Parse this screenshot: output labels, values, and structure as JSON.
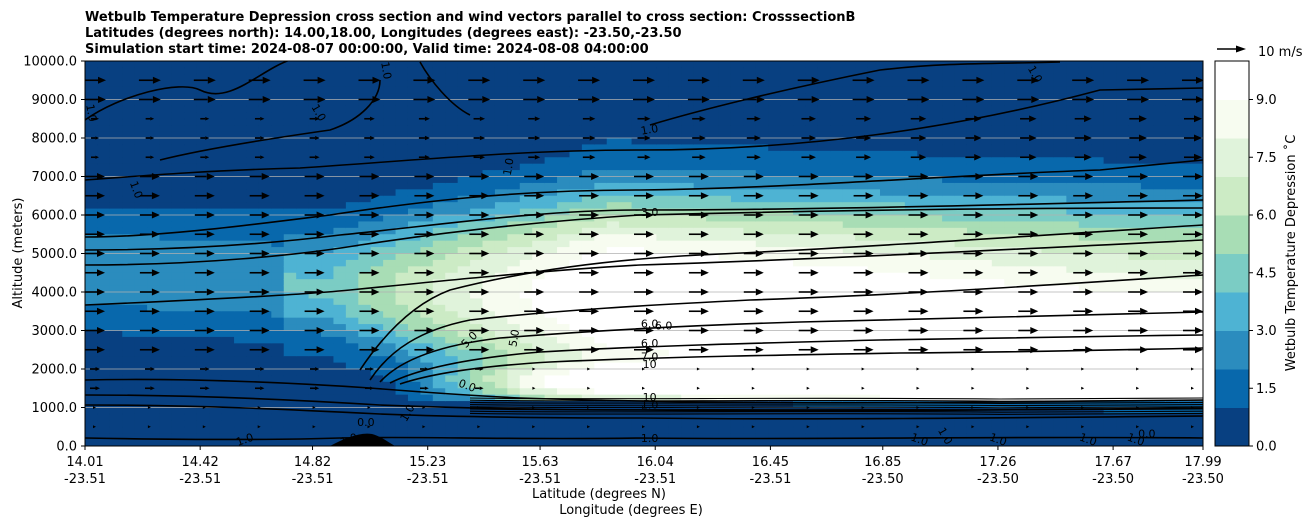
{
  "chart_data": {
    "type": "heatmap",
    "title_lines": [
      "Wetbulb Temperature Depression cross section and wind vectors parallel to cross section: CrosssectionB",
      "Latitudes (degrees north): 14.00,18.00, Longitudes (degrees east): -23.50,-23.50",
      "Simulation start time: 2024-08-07 00:00:00, Valid time: 2024-08-08 04:00:00"
    ],
    "xlabel_lines": [
      "Latitude (degrees N)",
      "Longitude (degrees E)"
    ],
    "ylabel": "Altitude (meters)",
    "x_ticks": [
      {
        "lat": "14.01",
        "lon": "-23.51"
      },
      {
        "lat": "14.42",
        "lon": "-23.51"
      },
      {
        "lat": "14.82",
        "lon": "-23.51"
      },
      {
        "lat": "15.23",
        "lon": "-23.51"
      },
      {
        "lat": "15.63",
        "lon": "-23.51"
      },
      {
        "lat": "16.04",
        "lon": "-23.51"
      },
      {
        "lat": "16.45",
        "lon": "-23.51"
      },
      {
        "lat": "16.85",
        "lon": "-23.50"
      },
      {
        "lat": "17.26",
        "lon": "-23.50"
      },
      {
        "lat": "17.67",
        "lon": "-23.50"
      },
      {
        "lat": "17.99",
        "lon": "-23.50"
      }
    ],
    "xlim": [
      14.01,
      17.99
    ],
    "y_ticks": [
      "0.0",
      "1000.0",
      "2000.0",
      "3000.0",
      "4000.0",
      "5000.0",
      "6000.0",
      "7000.0",
      "8000.0",
      "9000.0",
      "10000.0"
    ],
    "ylim": [
      0,
      10000
    ],
    "grid": "horizontal",
    "colorbar": {
      "label": "Wetbulb Temperature Depression ˚C",
      "ticks": [
        "0.0",
        "1.5",
        "3.0",
        "4.5",
        "6.0",
        "7.5",
        "9.0"
      ],
      "range": [
        0,
        10
      ],
      "colors": [
        "#084081",
        "#0868ac",
        "#2b8cbe",
        "#4eb3d3",
        "#7bccc4",
        "#a8ddb5",
        "#ccebc5",
        "#e0f3db",
        "#f7fcf0",
        "#ffffff"
      ]
    },
    "quiver_key": {
      "label": "10 m/s",
      "speed": 10
    },
    "contour_labels": [
      {
        "text": "1.0",
        "lat": 15.08,
        "alt": 9750,
        "rot": 80
      },
      {
        "text": "1.0",
        "lat": 14.03,
        "alt": 8650,
        "rot": 80
      },
      {
        "text": "1.0",
        "lat": 14.84,
        "alt": 8650,
        "rot": 60
      },
      {
        "text": "1.0",
        "lat": 15.52,
        "alt": 7250,
        "rot": -80
      },
      {
        "text": "1.0",
        "lat": 14.19,
        "alt": 6650,
        "rot": 70
      },
      {
        "text": "1.0",
        "lat": 16.02,
        "alt": 8200,
        "rot": -10
      },
      {
        "text": "1.0",
        "lat": 17.39,
        "alt": 9650,
        "rot": 60
      },
      {
        "text": "3.0",
        "lat": 16.02,
        "alt": 6050,
        "rot": 0
      },
      {
        "text": "6.0",
        "lat": 16.02,
        "alt": 3150,
        "rot": 0
      },
      {
        "text": "6.0",
        "lat": 16.07,
        "alt": 3100,
        "rot": 0
      },
      {
        "text": "5.0",
        "lat": 15.54,
        "alt": 2800,
        "rot": -80
      },
      {
        "text": "5.0",
        "lat": 15.38,
        "alt": 2750,
        "rot": -45
      },
      {
        "text": "6.0",
        "lat": 16.02,
        "alt": 2650,
        "rot": 0
      },
      {
        "text": "7.0",
        "lat": 16.02,
        "alt": 2300,
        "rot": 0
      },
      {
        "text": "10",
        "lat": 16.02,
        "alt": 2100,
        "rot": 0
      },
      {
        "text": "0.0",
        "lat": 15.37,
        "alt": 1550,
        "rot": 20
      },
      {
        "text": "10",
        "lat": 16.02,
        "alt": 1250,
        "rot": 0
      },
      {
        "text": "1.0",
        "lat": 16.02,
        "alt": 1050,
        "rot": 0
      },
      {
        "text": "1.0",
        "lat": 16.02,
        "alt": 180,
        "rot": 0
      },
      {
        "text": "0.0",
        "lat": 15.01,
        "alt": 600,
        "rot": 0
      },
      {
        "text": "1.0",
        "lat": 14.58,
        "alt": 150,
        "rot": -20
      },
      {
        "text": "1.0",
        "lat": 14.95,
        "alt": 150,
        "rot": -20
      },
      {
        "text": "1.0",
        "lat": 15.16,
        "alt": 850,
        "rot": -60
      },
      {
        "text": "1.0",
        "lat": 16.98,
        "alt": 150,
        "rot": 20
      },
      {
        "text": "1.0",
        "lat": 17.26,
        "alt": 150,
        "rot": 20
      },
      {
        "text": "1.0",
        "lat": 17.75,
        "alt": 150,
        "rot": 20
      },
      {
        "text": "0.0",
        "lat": 17.79,
        "alt": 300,
        "rot": 0
      },
      {
        "text": "1.0",
        "lat": 17.58,
        "alt": 150,
        "rot": 20
      },
      {
        "text": "1.0",
        "lat": 17.07,
        "alt": 250,
        "rot": 60
      }
    ]
  }
}
